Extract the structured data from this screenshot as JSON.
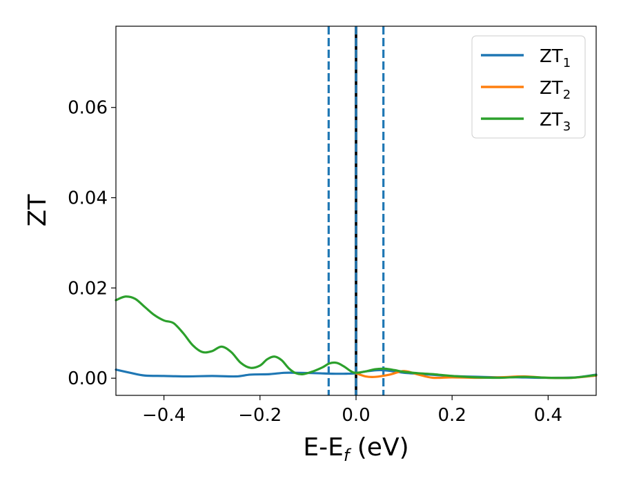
{
  "chart_data": {
    "type": "line",
    "title": "",
    "xlabel": {
      "main": "E-E",
      "sub": "f",
      "suffix": " (eV)"
    },
    "ylabel": "ZT",
    "xlim": [
      -0.5,
      0.5
    ],
    "ylim": [
      -0.0038,
      0.078
    ],
    "xticks": [
      -0.4,
      -0.2,
      0.0,
      0.2,
      0.4
    ],
    "xtick_labels": [
      "−0.4",
      "−0.2",
      "0.0",
      "0.2",
      "0.4"
    ],
    "yticks": [
      0.0,
      0.02,
      0.04,
      0.06
    ],
    "ytick_labels": [
      "0.00",
      "0.02",
      "0.04",
      "0.06"
    ],
    "grid": false,
    "legend_position": "top-right",
    "vlines": [
      {
        "x": -0.057,
        "style": "dashed",
        "color": "#1f77b4"
      },
      {
        "x": 0.0,
        "style": "solid",
        "color": "#000000"
      },
      {
        "x": 0.0,
        "style": "dashed",
        "color": "#1f77b4"
      },
      {
        "x": 0.057,
        "style": "dashed",
        "color": "#1f77b4"
      }
    ],
    "series": [
      {
        "name": "ZT",
        "sub": "1",
        "color": "#1f77b4",
        "x": [
          -0.5,
          -0.47,
          -0.44,
          -0.4,
          -0.35,
          -0.3,
          -0.25,
          -0.22,
          -0.18,
          -0.15,
          -0.12,
          -0.08,
          -0.05,
          -0.02,
          0.0,
          0.02,
          0.05,
          0.08,
          0.1,
          0.14,
          0.18,
          0.22,
          0.26,
          0.3,
          0.34,
          0.38,
          0.42,
          0.46,
          0.5
        ],
        "y": [
          0.0019,
          0.0012,
          0.0006,
          0.0005,
          0.0004,
          0.0005,
          0.0004,
          0.0008,
          0.0009,
          0.0012,
          0.0012,
          0.0011,
          0.001,
          0.001,
          0.0011,
          0.0015,
          0.0018,
          0.0015,
          0.0012,
          0.0009,
          0.0006,
          0.0004,
          0.0003,
          0.0002,
          0.0002,
          0.0001,
          0.0001,
          0.0002,
          0.0008
        ]
      },
      {
        "name": "ZT",
        "sub": "2",
        "color": "#ff7f0e",
        "x": [
          0.0,
          0.02,
          0.04,
          0.07,
          0.1,
          0.13,
          0.16,
          0.2,
          0.25,
          0.3,
          0.35,
          0.4,
          0.45,
          0.5
        ],
        "y": [
          0.0011,
          0.0004,
          0.0003,
          0.0008,
          0.0016,
          0.0008,
          0.0001,
          0.0002,
          0.0001,
          0.0002,
          0.0004,
          0.0001,
          0.0001,
          0.0006
        ]
      },
      {
        "name": "ZT",
        "sub": "3",
        "color": "#2ca02c",
        "x": [
          -0.5,
          -0.48,
          -0.46,
          -0.44,
          -0.42,
          -0.4,
          -0.38,
          -0.36,
          -0.34,
          -0.32,
          -0.3,
          -0.28,
          -0.26,
          -0.24,
          -0.22,
          -0.2,
          -0.185,
          -0.17,
          -0.155,
          -0.14,
          -0.125,
          -0.11,
          -0.09,
          -0.07,
          -0.055,
          -0.04,
          -0.025,
          -0.01,
          0.0,
          0.02,
          0.04,
          0.06,
          0.08,
          0.1,
          0.13,
          0.16,
          0.2,
          0.25,
          0.3,
          0.35,
          0.4,
          0.45,
          0.5
        ],
        "y": [
          0.0173,
          0.0181,
          0.0176,
          0.0158,
          0.014,
          0.0128,
          0.0122,
          0.01,
          0.0073,
          0.0058,
          0.006,
          0.007,
          0.0058,
          0.0034,
          0.0023,
          0.0028,
          0.0042,
          0.0048,
          0.004,
          0.0022,
          0.0011,
          0.0009,
          0.0015,
          0.0024,
          0.0033,
          0.0034,
          0.0026,
          0.0015,
          0.0012,
          0.0015,
          0.002,
          0.0021,
          0.0018,
          0.0014,
          0.0011,
          0.0009,
          0.0005,
          0.0002,
          0.0001,
          0.0003,
          0.0001,
          0.0001,
          0.0007
        ]
      }
    ]
  }
}
